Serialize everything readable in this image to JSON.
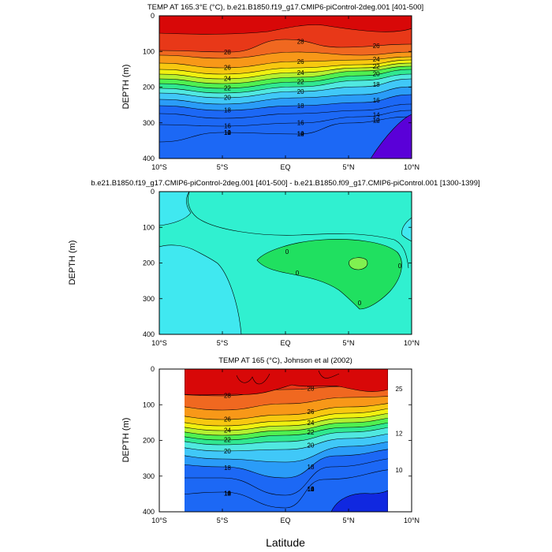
{
  "figure": {
    "xlabel": "Latitude",
    "colors": [
      "#2a00c8",
      "#1030e8",
      "#1c68f5",
      "#2a9cf8",
      "#40c8f8",
      "#50e8e0",
      "#30e890",
      "#50f050",
      "#b4f030",
      "#f0f010",
      "#f8c810",
      "#f89818",
      "#f06820",
      "#e83818",
      "#e00c0c"
    ]
  },
  "chart_data": [
    {
      "type": "contour",
      "title": "TEMP AT 165.3°E (°C), b.e21.B1850.f19_g17.CMIP6-piControl-2deg.001 [401-500]",
      "ylabel": "DEPTH (m)",
      "xlim": [
        -10,
        10
      ],
      "ylim": [
        400,
        0
      ],
      "xticks": [
        "10°S",
        "5°S",
        "EQ",
        "5°N",
        "10°N"
      ],
      "yticks": [
        "0",
        "100",
        "200",
        "300",
        "400"
      ],
      "contour_labels": [
        "28",
        "26",
        "24",
        "22",
        "20",
        "18",
        "16",
        "14",
        "12",
        "10",
        "28",
        "26",
        "24",
        "22",
        "20",
        "18",
        "16",
        "14",
        "12",
        "10",
        "26",
        "24",
        "22",
        "20",
        "18",
        "16",
        "14",
        "12",
        "10"
      ]
    },
    {
      "type": "contour",
      "title": "b.e21.B1850.f19_g17.CMIP6-piControl-2deg.001 [401-500] - b.e21.B1850.f09_g17.CMIP6-piControl.001 [1300-1399]",
      "ylabel": "DEPTH (m)",
      "xlim": [
        -10,
        10
      ],
      "ylim": [
        400,
        0
      ],
      "xticks": [
        "10°S",
        "5°S",
        "EQ",
        "5°N",
        "10°N"
      ],
      "yticks": [
        "0",
        "100",
        "200",
        "300",
        "400"
      ],
      "contour_labels": [
        "0",
        "0",
        "0",
        "0"
      ]
    },
    {
      "type": "contour",
      "title": "TEMP AT 165 (°C), Johnson et al (2002)",
      "ylabel": "DEPTH (m)",
      "xlim": [
        -10,
        10
      ],
      "ylim": [
        400,
        0
      ],
      "xticks": [
        "10°S",
        "5°S",
        "EQ",
        "5°N",
        "10°N"
      ],
      "yticks": [
        "0",
        "100",
        "200",
        "300",
        "400"
      ],
      "contour_labels": [
        "28",
        "26",
        "24",
        "22",
        "20",
        "18",
        "16",
        "14",
        "12",
        "10",
        "28",
        "26",
        "24",
        "22",
        "20",
        "18",
        "16",
        "14",
        "12",
        "10",
        "25",
        "12",
        "10"
      ]
    }
  ]
}
